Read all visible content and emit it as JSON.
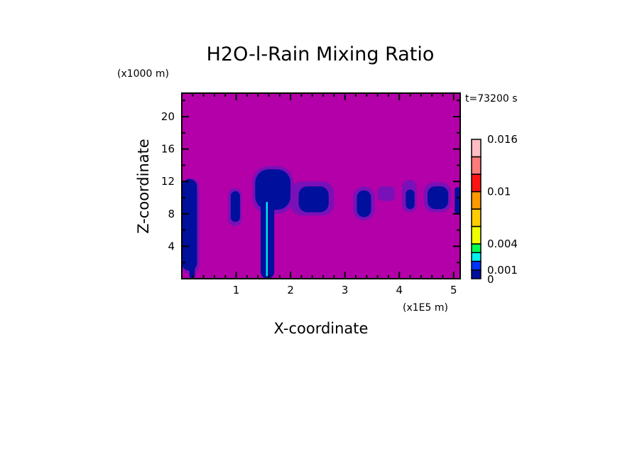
{
  "chart_data": {
    "type": "heatmap",
    "title": "H2O-l-Rain Mixing Ratio",
    "xlabel": "X-coordinate",
    "ylabel": "Z-coordinate",
    "x_unit_label": "(x1E5 m)",
    "y_unit_label": "(x1000 m)",
    "time_label": "t=73200 s",
    "xlim": [
      0,
      5.12
    ],
    "ylim": [
      0,
      22.9
    ],
    "x_ticks": [
      1,
      2,
      3,
      4,
      5
    ],
    "x_tick_labels": [
      "1",
      "2",
      "3",
      "4",
      "5"
    ],
    "y_ticks": [
      4,
      8,
      12,
      16,
      20
    ],
    "y_tick_labels": [
      "4",
      "8",
      "12",
      "16",
      "20"
    ],
    "background_color": "#b400a8",
    "colorbar": {
      "levels": [
        0,
        0.001,
        0.002,
        0.003,
        0.004,
        0.006,
        0.008,
        0.01,
        0.012,
        0.014,
        0.016
      ],
      "colors": [
        "#000f9c",
        "#0032ff",
        "#00f0f0",
        "#00ff50",
        "#f0ff00",
        "#ffcc00",
        "#ff9900",
        "#ff1414",
        "#ff7a7a",
        "#ffbec4"
      ],
      "labels": [
        {
          "value": 0,
          "text": "0"
        },
        {
          "value": 0.001,
          "text": "0.001"
        },
        {
          "value": 0.004,
          "text": "0.004"
        },
        {
          "value": 0.01,
          "text": "0.01"
        },
        {
          "value": 0.016,
          "text": "0.016"
        }
      ]
    },
    "regions": [
      {
        "x": [
          0.0,
          0.32
        ],
        "z": [
          0.6,
          12.4
        ],
        "level": "faint",
        "color": "#7a10b8"
      },
      {
        "x": [
          0.0,
          0.28
        ],
        "z": [
          1.0,
          12.3
        ],
        "level": 0.0005,
        "color": "#000f9c"
      },
      {
        "x": [
          0.14,
          0.24
        ],
        "z": [
          0.0,
          4.0
        ],
        "level": 0.0005,
        "color": "#000f9c"
      },
      {
        "x": [
          0.85,
          1.1
        ],
        "z": [
          6.5,
          11.2
        ],
        "level": "faint",
        "color": "#7a10b8"
      },
      {
        "x": [
          0.9,
          1.07
        ],
        "z": [
          7.0,
          10.8
        ],
        "level": 0.0005,
        "color": "#000f9c"
      },
      {
        "x": [
          1.3,
          2.05
        ],
        "z": [
          8.0,
          13.9
        ],
        "level": "faint",
        "color": "#7a10b8"
      },
      {
        "x": [
          1.35,
          2.0
        ],
        "z": [
          8.5,
          13.5
        ],
        "level": 0.0005,
        "color": "#000f9c"
      },
      {
        "x": [
          1.45,
          1.7
        ],
        "z": [
          0.0,
          10.0
        ],
        "level": 0.0005,
        "color": "#000f9c"
      },
      {
        "x": [
          1.55,
          1.58
        ],
        "z": [
          0.3,
          9.5
        ],
        "level": 0.003,
        "color": "#00f0f0"
      },
      {
        "x": [
          2.0,
          2.8
        ],
        "z": [
          7.8,
          12.0
        ],
        "level": "faint",
        "color": "#7a10b8"
      },
      {
        "x": [
          2.15,
          2.7
        ],
        "z": [
          8.2,
          11.4
        ],
        "level": 0.0005,
        "color": "#000f9c"
      },
      {
        "x": [
          3.15,
          3.55
        ],
        "z": [
          7.2,
          11.4
        ],
        "level": "faint",
        "color": "#7a10b8"
      },
      {
        "x": [
          3.22,
          3.48
        ],
        "z": [
          7.6,
          10.9
        ],
        "level": 0.0005,
        "color": "#000f9c"
      },
      {
        "x": [
          3.6,
          3.92
        ],
        "z": [
          9.6,
          11.4
        ],
        "level": "faint",
        "color": "#7a10b8"
      },
      {
        "x": [
          4.05,
          4.32
        ],
        "z": [
          8.2,
          12.2
        ],
        "level": "faint",
        "color": "#7a10b8"
      },
      {
        "x": [
          4.12,
          4.28
        ],
        "z": [
          8.6,
          11.0
        ],
        "level": 0.0005,
        "color": "#000f9c"
      },
      {
        "x": [
          4.45,
          4.95
        ],
        "z": [
          8.2,
          11.9
        ],
        "level": "faint",
        "color": "#7a10b8"
      },
      {
        "x": [
          4.52,
          4.9
        ],
        "z": [
          8.6,
          11.4
        ],
        "level": 0.0005,
        "color": "#000f9c"
      },
      {
        "x": [
          5.02,
          5.12
        ],
        "z": [
          8.0,
          11.3
        ],
        "level": 0.0005,
        "color": "#000f9c"
      }
    ]
  }
}
